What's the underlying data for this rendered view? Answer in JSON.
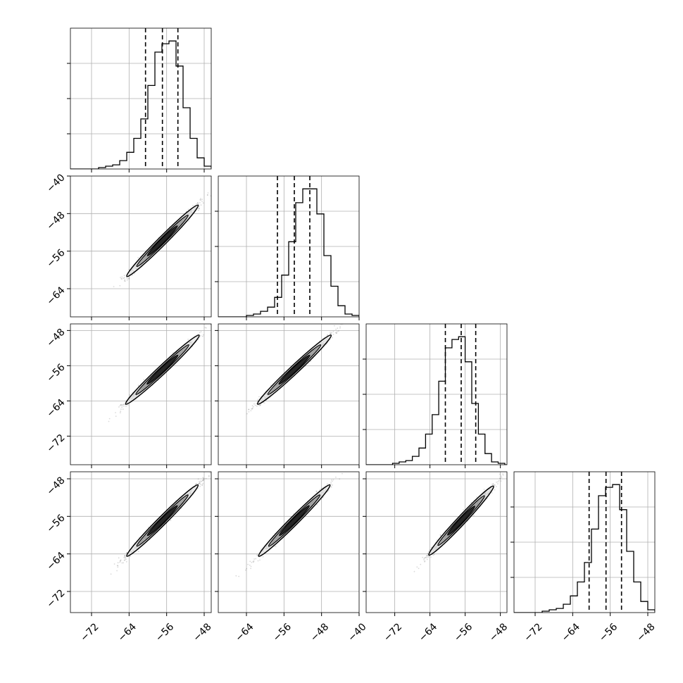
{
  "chart_data": {
    "type": "corner",
    "n_params": 4,
    "grid": true,
    "colors": {
      "line": "#000000",
      "grid": "#b0b0b0",
      "frame": "#000000",
      "scatter": "#333333"
    },
    "params": [
      {
        "range": [
          -76.5,
          -46.5
        ],
        "ticks": [
          -72,
          -64,
          -56,
          -48
        ],
        "tick_labels": [
          "−72",
          "−64",
          "−56",
          "−48"
        ]
      },
      {
        "range": [
          -70,
          -40
        ],
        "ticks": [
          -64,
          -56,
          -48,
          -40
        ],
        "tick_labels": [
          "−64",
          "−56",
          "−48",
          "−40"
        ]
      },
      {
        "range": [
          -78.5,
          -46.5
        ],
        "ticks": [
          -72,
          -64,
          -56,
          -48
        ],
        "tick_labels": [
          "−72",
          "−64",
          "−56",
          "−48"
        ]
      },
      {
        "range": [
          -76.5,
          -46.5
        ],
        "ticks": [
          -72,
          -64,
          -56,
          -48
        ],
        "tick_labels": [
          "−72",
          "−64",
          "−56",
          "−48"
        ]
      }
    ],
    "histograms": [
      {
        "bin_width": 1.5,
        "counts": [
          0,
          0,
          0,
          0,
          1,
          2,
          3,
          6,
          12,
          22,
          36,
          60,
          84,
          90,
          92,
          74,
          44,
          22,
          8,
          2,
          1,
          0
        ],
        "quantiles": [
          -60.5,
          -56.9,
          -53.6
        ]
      },
      {
        "bin_width": 1.5,
        "counts": [
          0,
          0,
          0,
          0,
          1,
          2,
          4,
          7,
          14,
          30,
          54,
          82,
          92,
          92,
          74,
          44,
          22,
          8,
          2,
          1,
          0
        ],
        "quantiles": [
          -57.4,
          -53.8,
          -50.5
        ]
      },
      {
        "bin_width": 1.5,
        "counts": [
          0,
          0,
          0,
          0,
          1,
          2,
          3,
          6,
          12,
          22,
          36,
          60,
          84,
          90,
          92,
          74,
          44,
          22,
          8,
          2,
          1,
          0
        ],
        "quantiles": [
          -60.5,
          -56.9,
          -53.6
        ]
      },
      {
        "bin_width": 1.5,
        "counts": [
          0,
          0,
          0,
          0,
          1,
          2,
          3,
          6,
          12,
          22,
          36,
          60,
          84,
          90,
          92,
          74,
          44,
          22,
          8,
          2,
          1,
          0
        ],
        "quantiles": [
          -60.5,
          -56.9,
          -53.6
        ]
      }
    ],
    "joint": {
      "center": [
        -56.9,
        -53.8,
        -56.9,
        -56.9
      ],
      "spread_sigma": 3.3,
      "correlation": 0.99
    }
  }
}
